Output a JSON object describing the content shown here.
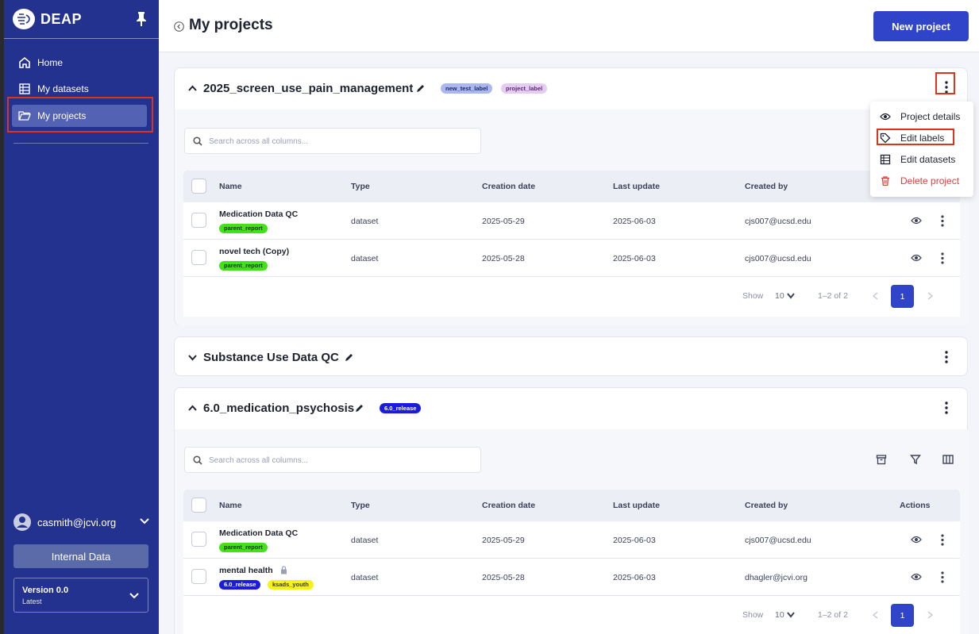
{
  "app": {
    "logo_text": "DEAP"
  },
  "sidebar": {
    "items": [
      {
        "label": "Home",
        "icon": "home-icon"
      },
      {
        "label": "My datasets",
        "icon": "list-icon"
      },
      {
        "label": "My projects",
        "icon": "folder-open-icon"
      }
    ],
    "user": "casmith@jcvi.org",
    "internal_data": "Internal Data",
    "version": {
      "title": "Version 0.0",
      "subtitle": "Latest"
    }
  },
  "header": {
    "title": "My projects",
    "new_project": "New project"
  },
  "search": {
    "placeholder": "Search across all columns..."
  },
  "table_columns": {
    "name": "Name",
    "type": "Type",
    "creation": "Creation date",
    "update": "Last update",
    "created_by": "Created by",
    "actions": "Actions"
  },
  "projects": [
    {
      "title": "2025_screen_use_pain_management",
      "labels": [
        {
          "text": "new_test_label",
          "color": "#aab8ee"
        },
        {
          "text": "project_label",
          "color": "#e4cdf0"
        }
      ],
      "rows": [
        {
          "name": "Medication Data QC",
          "tags": [
            "parent_report"
          ],
          "type": "dataset",
          "created": "2025-05-29",
          "updated": "2025-06-03",
          "by": "cjs007@ucsd.edu"
        },
        {
          "name": "novel tech (Copy)",
          "tags": [
            "parent_report"
          ],
          "type": "dataset",
          "created": "2025-05-28",
          "updated": "2025-06-03",
          "by": "cjs007@ucsd.edu"
        }
      ],
      "pager": {
        "show": "Show",
        "size": "10",
        "range": "1–2 of 2",
        "page": "1"
      }
    },
    {
      "title": "Substance Use Data QC"
    },
    {
      "title": "6.0_medication_psychosis",
      "labels": [
        {
          "text": "6.0_release",
          "color": "#1b1be0"
        }
      ],
      "rows": [
        {
          "name": "Medication Data QC",
          "tags": [
            "parent_report"
          ],
          "type": "dataset",
          "created": "2025-05-29",
          "updated": "2025-06-03",
          "by": "cjs007@ucsd.edu"
        },
        {
          "name": "mental health",
          "tags": [
            "6.0_release",
            "ksads_youth"
          ],
          "type": "dataset",
          "created": "2025-05-28",
          "updated": "2025-06-03",
          "by": "dhagler@jcvi.org"
        }
      ],
      "pager": {
        "show": "Show",
        "size": "10",
        "range": "1–2 of 2",
        "page": "1"
      }
    }
  ],
  "context_menu": {
    "items": [
      {
        "label": "Project details",
        "icon": "eye-icon"
      },
      {
        "label": "Edit labels",
        "icon": "tag-icon"
      },
      {
        "label": "Edit datasets",
        "icon": "list-icon"
      },
      {
        "label": "Delete project",
        "icon": "trash-icon"
      }
    ]
  },
  "colors": {
    "sidebar": "#23318f",
    "accent": "#2f44c9",
    "tag_green": "#44e01b",
    "tag_yellow": "#f5f21a",
    "tag_blue": "#1b1be0",
    "danger": "#e2403a",
    "highlight": "#e0331b"
  }
}
